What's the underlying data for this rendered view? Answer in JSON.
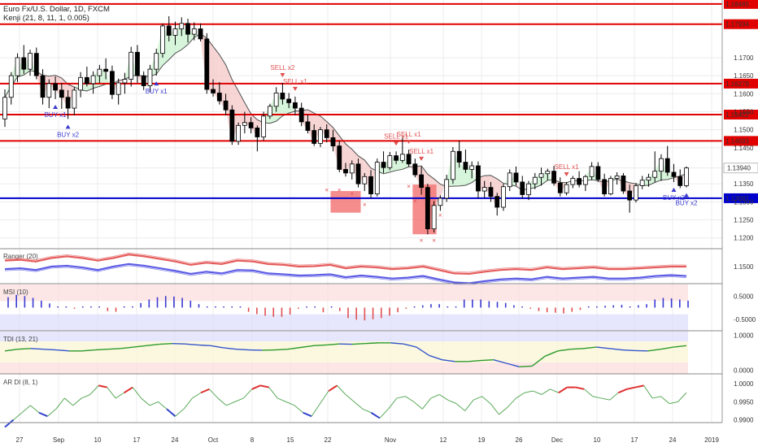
{
  "header": {
    "title": "Euro Fx/U.S. Dollar, 1D, FXCM",
    "indicator": "Kenji (21, 8, 11, 1, 0.005)"
  },
  "colors": {
    "up_candle": "#ffffff",
    "down_candle": "#000000",
    "resistance_line": "#e00000",
    "support_line": "#0000cc",
    "buy_signal": "#3a3ad0",
    "sell_signal": "#e05050",
    "upper_band_fill": "#c9f2cf",
    "lower_band_fill": "#f4c7c7",
    "trail_line": "#505050",
    "box_fill": "#f27070"
  },
  "chart_data": [
    {
      "type": "candlestick",
      "panel": "price",
      "title": "Euro Fx/U.S. Dollar, 1D, FXCM",
      "indicator": "Kenji (21, 8, 11, 1, 0.005)",
      "ylim": [
        1.117,
        1.186
      ],
      "y_ticks": [
        "1.1700",
        "1.1650",
        "1.1600",
        "1.1550",
        "1.1500",
        "1.1450",
        "1.1394",
        "1.1350",
        "1.1300",
        "1.1250",
        "1.1200"
      ],
      "x_ticks": [
        "27",
        "Sep",
        "10",
        "17",
        "24",
        "Oct",
        "8",
        "15",
        "22",
        "Nov",
        "12",
        "19",
        "26",
        "Dec",
        "10",
        "17",
        "24",
        "2019"
      ],
      "last_price": "1.13940",
      "horizontal_levels": [
        {
          "value": 1.1849,
          "label": "1.18485",
          "kind": "resistance"
        },
        {
          "value": 1.1793,
          "label": "1.17934",
          "kind": "resistance"
        },
        {
          "value": 1.1628,
          "label": "1.16279",
          "kind": "resistance"
        },
        {
          "value": 1.1542,
          "label": "1.15422",
          "kind": "resistance"
        },
        {
          "value": 1.1469,
          "label": "1.14693",
          "kind": "resistance"
        },
        {
          "value": 1.131,
          "label": "1.13097",
          "kind": "support"
        }
      ],
      "signals": [
        {
          "bar": 8,
          "type": "buy",
          "label": "BUY x1"
        },
        {
          "bar": 10,
          "type": "buy",
          "label": "BUY x2"
        },
        {
          "bar": 24,
          "type": "buy",
          "label": "BUY x1"
        },
        {
          "bar": 44,
          "type": "sell",
          "label": "SELL x2"
        },
        {
          "bar": 46,
          "type": "sell",
          "label": "SELL x1"
        },
        {
          "bar": 62,
          "type": "sell",
          "label": "SELL x1"
        },
        {
          "bar": 64,
          "type": "sell",
          "label": "SELL x1"
        },
        {
          "bar": 66,
          "type": "sell",
          "label": "SELL x1"
        },
        {
          "bar": 89,
          "type": "sell",
          "label": "SELL x1"
        },
        {
          "bar": 106,
          "type": "buy",
          "label": "BUY x2"
        },
        {
          "bar": 108,
          "type": "buy",
          "label": "BUY x2"
        }
      ],
      "candles": [
        [
          1.153,
          1.1612,
          1.1508,
          1.159
        ],
        [
          1.159,
          1.166,
          1.157,
          1.165
        ],
        [
          1.165,
          1.1712,
          1.1632,
          1.17
        ],
        [
          1.17,
          1.1735,
          1.1655,
          1.1668
        ],
        [
          1.1668,
          1.1722,
          1.165,
          1.1712
        ],
        [
          1.1712,
          1.1728,
          1.164,
          1.165
        ],
        [
          1.165,
          1.1668,
          1.157,
          1.159
        ],
        [
          1.159,
          1.164,
          1.156,
          1.1628
        ],
        [
          1.1628,
          1.1648,
          1.1585,
          1.161
        ],
        [
          1.161,
          1.163,
          1.1558,
          1.159
        ],
        [
          1.159,
          1.161,
          1.153,
          1.156
        ],
        [
          1.156,
          1.1618,
          1.154,
          1.161
        ],
        [
          1.161,
          1.166,
          1.159,
          1.1645
        ],
        [
          1.1645,
          1.1675,
          1.162,
          1.1628
        ],
        [
          1.1628,
          1.1662,
          1.16,
          1.165
        ],
        [
          1.165,
          1.168,
          1.163,
          1.1668
        ],
        [
          1.1668,
          1.1698,
          1.164,
          1.1662
        ],
        [
          1.1662,
          1.1678,
          1.1585,
          1.1598
        ],
        [
          1.1598,
          1.1642,
          1.157,
          1.163
        ],
        [
          1.163,
          1.1658,
          1.16,
          1.164
        ],
        [
          1.164,
          1.173,
          1.162,
          1.1715
        ],
        [
          1.1715,
          1.1735,
          1.163,
          1.165
        ],
        [
          1.165,
          1.1662,
          1.161,
          1.1622
        ],
        [
          1.1622,
          1.168,
          1.1605,
          1.1668
        ],
        [
          1.1668,
          1.1725,
          1.165,
          1.1712
        ],
        [
          1.1712,
          1.1795,
          1.17,
          1.1788
        ],
        [
          1.1788,
          1.1815,
          1.1745,
          1.1762
        ],
        [
          1.1762,
          1.18,
          1.1735,
          1.178
        ],
        [
          1.178,
          1.1812,
          1.176,
          1.1795
        ],
        [
          1.1795,
          1.1808,
          1.1742,
          1.1765
        ],
        [
          1.1765,
          1.1798,
          1.1748,
          1.178
        ],
        [
          1.178,
          1.1795,
          1.1745,
          1.1752
        ],
        [
          1.1752,
          1.1768,
          1.16,
          1.1612
        ],
        [
          1.1612,
          1.164,
          1.1592,
          1.1602
        ],
        [
          1.1602,
          1.1632,
          1.157,
          1.158
        ],
        [
          1.158,
          1.16,
          1.154,
          1.1555
        ],
        [
          1.1555,
          1.1568,
          1.1458,
          1.1468
        ],
        [
          1.1468,
          1.152,
          1.1458,
          1.1512
        ],
        [
          1.1512,
          1.155,
          1.149,
          1.152
        ],
        [
          1.152,
          1.1535,
          1.149,
          1.1505
        ],
        [
          1.1505,
          1.1512,
          1.144,
          1.148
        ],
        [
          1.148,
          1.155,
          1.147,
          1.1538
        ],
        [
          1.1538,
          1.1572,
          1.153,
          1.1565
        ],
        [
          1.1565,
          1.1618,
          1.155,
          1.1602
        ],
        [
          1.1602,
          1.163,
          1.157,
          1.1585
        ],
        [
          1.1585,
          1.1602,
          1.156,
          1.1575
        ],
        [
          1.1575,
          1.1592,
          1.154,
          1.156
        ],
        [
          1.156,
          1.1575,
          1.151,
          1.1522
        ],
        [
          1.1522,
          1.1542,
          1.149,
          1.1498
        ],
        [
          1.1498,
          1.1515,
          1.1455,
          1.1462
        ],
        [
          1.1462,
          1.1508,
          1.1452,
          1.15
        ],
        [
          1.15,
          1.1515,
          1.1465,
          1.1478
        ],
        [
          1.1478,
          1.15,
          1.144,
          1.1455
        ],
        [
          1.1455,
          1.147,
          1.1382,
          1.139
        ],
        [
          1.139,
          1.1408,
          1.137,
          1.138
        ],
        [
          1.138,
          1.1415,
          1.1362,
          1.1405
        ],
        [
          1.1405,
          1.142,
          1.134,
          1.135
        ],
        [
          1.135,
          1.138,
          1.133,
          1.137
        ],
        [
          1.137,
          1.1388,
          1.131,
          1.1322
        ],
        [
          1.1322,
          1.142,
          1.1315,
          1.141
        ],
        [
          1.141,
          1.144,
          1.138,
          1.1395
        ],
        [
          1.1395,
          1.1438,
          1.1388,
          1.1428
        ],
        [
          1.1428,
          1.144,
          1.1405,
          1.1415
        ],
        [
          1.1415,
          1.148,
          1.1408,
          1.1432
        ],
        [
          1.1432,
          1.1445,
          1.1398,
          1.1405
        ],
        [
          1.1405,
          1.142,
          1.1368,
          1.1375
        ],
        [
          1.1375,
          1.1398,
          1.132,
          1.134
        ],
        [
          1.134,
          1.135,
          1.121,
          1.1225
        ],
        [
          1.1225,
          1.1302,
          1.1215,
          1.129
        ],
        [
          1.129,
          1.1318,
          1.1275,
          1.131
        ],
        [
          1.131,
          1.1375,
          1.13,
          1.1362
        ],
        [
          1.1362,
          1.1452,
          1.135,
          1.144
        ],
        [
          1.144,
          1.147,
          1.1395,
          1.141
        ],
        [
          1.141,
          1.1445,
          1.138,
          1.139
        ],
        [
          1.139,
          1.1412,
          1.1365,
          1.14
        ],
        [
          1.14,
          1.1412,
          1.131,
          1.133
        ],
        [
          1.133,
          1.1358,
          1.131,
          1.134
        ],
        [
          1.134,
          1.1355,
          1.13,
          1.1315
        ],
        [
          1.1315,
          1.1325,
          1.1262,
          1.1285
        ],
        [
          1.1285,
          1.135,
          1.1275,
          1.1342
        ],
        [
          1.1342,
          1.139,
          1.133,
          1.138
        ],
        [
          1.138,
          1.1398,
          1.1345,
          1.1355
        ],
        [
          1.1355,
          1.1372,
          1.131,
          1.132
        ],
        [
          1.132,
          1.1358,
          1.1305,
          1.135
        ],
        [
          1.135,
          1.138,
          1.1335,
          1.1368
        ],
        [
          1.1368,
          1.1395,
          1.1345,
          1.1378
        ],
        [
          1.1378,
          1.1392,
          1.136,
          1.1385
        ],
        [
          1.1385,
          1.14,
          1.1345,
          1.1352
        ],
        [
          1.1352,
          1.1368,
          1.1315,
          1.1325
        ],
        [
          1.1325,
          1.1355,
          1.1318,
          1.1348
        ],
        [
          1.1348,
          1.1372,
          1.1338,
          1.1365
        ],
        [
          1.1365,
          1.1385,
          1.134,
          1.1348
        ],
        [
          1.1348,
          1.1375,
          1.133,
          1.137
        ],
        [
          1.137,
          1.141,
          1.136,
          1.1398
        ],
        [
          1.1398,
          1.141,
          1.1355,
          1.1362
        ],
        [
          1.1362,
          1.1378,
          1.1315,
          1.1322
        ],
        [
          1.1322,
          1.1372,
          1.1318,
          1.1365
        ],
        [
          1.1365,
          1.1382,
          1.1348,
          1.1372
        ],
        [
          1.1372,
          1.138,
          1.1322,
          1.133
        ],
        [
          1.133,
          1.1348,
          1.127,
          1.1305
        ],
        [
          1.1305,
          1.1352,
          1.1298,
          1.1345
        ],
        [
          1.1345,
          1.1372,
          1.1335,
          1.136
        ],
        [
          1.136,
          1.1378,
          1.1342,
          1.1368
        ],
        [
          1.1368,
          1.144,
          1.1355,
          1.1385
        ],
        [
          1.1385,
          1.1432,
          1.1358,
          1.142
        ],
        [
          1.142,
          1.1455,
          1.1372,
          1.1382
        ],
        [
          1.1382,
          1.1405,
          1.1355,
          1.137
        ],
        [
          1.137,
          1.139,
          1.1338,
          1.1345
        ],
        [
          1.1345,
          1.1398,
          1.134,
          1.1394
        ]
      ]
    },
    {
      "type": "line",
      "panel": "Ranger (20)",
      "label": "Ranger (20)",
      "y_ticks": [
        "1.1500"
      ],
      "ylim": [
        1.13,
        1.17
      ],
      "series": [
        {
          "name": "",
          "color": "#e04040",
          "values": [
            1.157,
            1.158,
            1.156,
            1.16,
            1.162,
            1.16,
            1.157,
            1.16,
            1.164,
            1.162,
            1.159,
            1.156,
            1.152,
            1.1545,
            1.153,
            1.157,
            1.156,
            1.153,
            1.152,
            1.15,
            1.1505,
            1.152,
            1.148,
            1.15,
            1.149,
            1.147,
            1.148,
            1.15,
            1.146,
            1.142,
            1.1415,
            1.144,
            1.146,
            1.147,
            1.146,
            1.149,
            1.147,
            1.148,
            1.149,
            1.147,
            1.147,
            1.148,
            1.149,
            1.15,
            1.15
          ]
        },
        {
          "name": "",
          "color": "#4040e0",
          "values": [
            1.147,
            1.148,
            1.146,
            1.15,
            1.151,
            1.149,
            1.146,
            1.15,
            1.153,
            1.151,
            1.148,
            1.145,
            1.1415,
            1.144,
            1.142,
            1.146,
            1.1455,
            1.142,
            1.141,
            1.1395,
            1.14,
            1.141,
            1.1375,
            1.1395,
            1.138,
            1.136,
            1.137,
            1.139,
            1.135,
            1.1315,
            1.1305,
            1.133,
            1.135,
            1.136,
            1.135,
            1.138,
            1.136,
            1.137,
            1.138,
            1.136,
            1.136,
            1.137,
            1.139,
            1.14,
            1.139
          ]
        }
      ]
    },
    {
      "type": "bar",
      "panel": "MSI (10)",
      "label": "MSI (10)",
      "y_ticks": [
        "0.5000",
        "-0.5000"
      ],
      "ylim": [
        -1.0,
        1.0
      ],
      "values": [
        0.45,
        0.55,
        0.5,
        0.42,
        0.3,
        0.18,
        0.05,
        0.0,
        -0.03,
        0.02,
        0.05,
        0.04,
        -0.15,
        -0.18,
        0.0,
        0.05,
        0.2,
        0.35,
        0.45,
        0.5,
        0.48,
        0.42,
        0.3,
        0.15,
        0.0,
        0.05,
        0.0,
        0.0,
        0.0,
        -0.18,
        -0.28,
        -0.35,
        -0.4,
        -0.4,
        -0.3,
        -0.05,
        0.05,
        0.0,
        -0.2,
        0.0,
        -0.15,
        -0.45,
        -0.52,
        -0.55,
        -0.5,
        -0.45,
        -0.35,
        -0.2,
        -0.05,
        0.05,
        0.1,
        0.15,
        0.15,
        0.05,
        0.05,
        0.35,
        0.35,
        0.35,
        0.28,
        0.25,
        0.2,
        0.1,
        0.0,
        -0.05,
        -0.15,
        -0.2,
        -0.22,
        -0.25,
        -0.18,
        -0.1,
        0.05,
        0.05,
        0.08,
        0.1,
        0.12,
        0.05,
        0.1,
        0.15,
        0.35,
        0.42,
        0.4,
        0.35,
        0.3
      ]
    },
    {
      "type": "line",
      "panel": "TDI (13, 21)",
      "label": "TDI (13, 21)",
      "y_ticks": [
        "1.0000",
        "0.0000"
      ],
      "ylim": [
        -0.1,
        1.1
      ],
      "values": [
        0.55,
        0.6,
        0.62,
        0.6,
        0.58,
        0.55,
        0.55,
        0.58,
        0.6,
        0.62,
        0.66,
        0.7,
        0.74,
        0.76,
        0.75,
        0.72,
        0.7,
        0.64,
        0.6,
        0.58,
        0.57,
        0.58,
        0.6,
        0.65,
        0.7,
        0.72,
        0.75,
        0.74,
        0.76,
        0.78,
        0.78,
        0.75,
        0.66,
        0.42,
        0.3,
        0.25,
        0.25,
        0.28,
        0.3,
        0.2,
        0.1,
        0.12,
        0.4,
        0.55,
        0.6,
        0.62,
        0.66,
        0.62,
        0.58,
        0.56,
        0.55,
        0.6,
        0.66,
        0.7
      ]
    },
    {
      "type": "line",
      "panel": "AR DI (8, 1)",
      "label": "AR DI (8, 1)",
      "y_ticks": [
        "1.0000",
        "0.9950",
        "0.9900"
      ],
      "ylim": [
        0.987,
        1.0025
      ],
      "values": [
        0.988,
        0.99,
        0.992,
        0.994,
        0.992,
        0.991,
        0.993,
        0.996,
        0.994,
        0.996,
        0.997,
        0.9995,
        0.999,
        0.996,
        0.9975,
        0.999,
        0.996,
        0.994,
        0.995,
        0.993,
        0.991,
        0.993,
        0.996,
        0.9975,
        0.9985,
        0.996,
        0.994,
        0.995,
        0.996,
        0.9985,
        0.9995,
        0.999,
        0.996,
        0.995,
        0.994,
        0.992,
        0.991,
        0.9945,
        0.998,
        0.9995,
        0.997,
        0.995,
        0.993,
        0.992,
        0.9905,
        0.993,
        0.996,
        0.9965,
        0.995,
        0.993,
        0.996,
        0.997,
        0.9955,
        0.9945,
        0.9925,
        0.9955,
        0.9965,
        0.9945,
        0.9915,
        0.9935,
        0.996,
        0.9975,
        0.998,
        0.997,
        0.9985,
        0.9975,
        0.999,
        0.999,
        0.9985,
        0.9965,
        0.996,
        0.9955,
        0.9975,
        0.9985,
        0.999,
        0.9995,
        0.996,
        0.9965,
        0.9945,
        0.995,
        0.9975
      ]
    }
  ]
}
